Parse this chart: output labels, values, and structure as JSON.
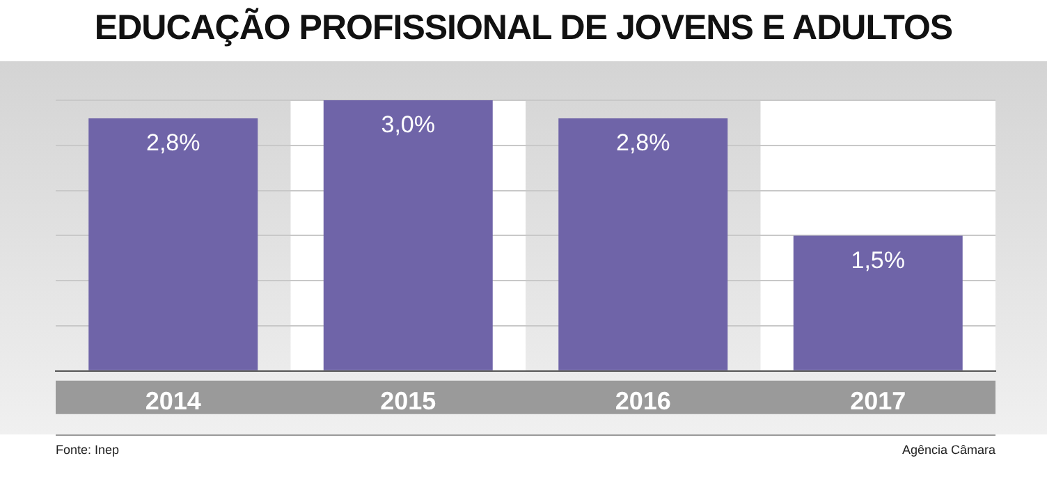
{
  "chart_data": {
    "type": "bar",
    "title": "EDUCAÇÃO PROFISSIONAL DE JOVENS E ADULTOS",
    "categories": [
      "2014",
      "2015",
      "2016",
      "2017"
    ],
    "values": [
      2.8,
      3.0,
      2.8,
      1.5
    ],
    "value_labels": [
      "2,8%",
      "3,0%",
      "2,8%",
      "1,5%"
    ],
    "color": "#6f64a8",
    "ylim": [
      0,
      3
    ],
    "yticks": [
      {
        "value": 0,
        "label": null
      },
      {
        "value": 0.5,
        "label": null
      },
      {
        "value": 1,
        "label": null
      },
      {
        "value": 1.5,
        "label": null
      },
      {
        "value": 2,
        "label": null
      },
      {
        "value": 2.5,
        "label": null
      },
      {
        "value": 3,
        "label": null
      }
    ],
    "grid": "y",
    "tick_labels": "x",
    "annotations": [
      "Fonte: Inep",
      "Agência Câmara"
    ]
  }
}
